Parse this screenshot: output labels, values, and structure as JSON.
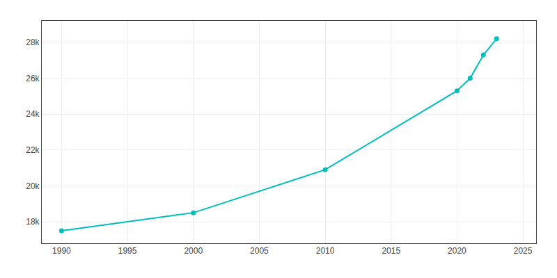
{
  "chart_data": {
    "type": "line",
    "x": [
      1990,
      2000,
      2010,
      2020,
      2021,
      2022,
      2023
    ],
    "values": [
      17500,
      18500,
      20900,
      25300,
      26000,
      27300,
      28200
    ],
    "color": "#00BEBE",
    "marker": "circle",
    "xlim": [
      1988.5,
      2026
    ],
    "ylim": [
      16800,
      29200
    ],
    "xticks": [
      1990,
      1995,
      2000,
      2005,
      2010,
      2015,
      2020,
      2025
    ],
    "yticks": [
      {
        "value": 18000,
        "label": "18k"
      },
      {
        "value": 20000,
        "label": "20k"
      },
      {
        "value": 22000,
        "label": "22k"
      },
      {
        "value": 24000,
        "label": "24k"
      },
      {
        "value": 26000,
        "label": "26k"
      },
      {
        "value": 28000,
        "label": "28k"
      }
    ],
    "grid": true
  }
}
